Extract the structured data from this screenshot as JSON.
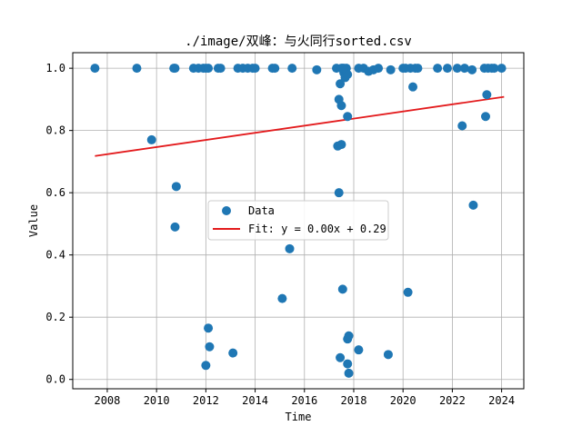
{
  "chart_data": {
    "type": "scatter",
    "title": "./image/双峰：与火同行sorted.csv",
    "xlabel": "Time",
    "ylabel": "Value",
    "xlim": [
      2006.6,
      2024.9
    ],
    "ylim": [
      -0.03,
      1.05
    ],
    "xticks": [
      2008,
      2010,
      2012,
      2014,
      2016,
      2018,
      2020,
      2022,
      2024
    ],
    "yticks": [
      0.0,
      0.2,
      0.4,
      0.6,
      0.8,
      1.0
    ],
    "xtick_labels": [
      "2008",
      "2010",
      "2012",
      "2014",
      "2016",
      "2018",
      "2020",
      "2022",
      "2024"
    ],
    "ytick_labels": [
      "0.0",
      "0.2",
      "0.4",
      "0.6",
      "0.8",
      "1.0"
    ],
    "grid": true,
    "legend_position": "center",
    "colors": {
      "points": "#1f77b4",
      "fit": "#e31a1c",
      "grid": "#b0b0b0"
    },
    "series": [
      {
        "name": "Data",
        "kind": "scatter",
        "points": [
          [
            2007.5,
            1.0
          ],
          [
            2009.2,
            1.0
          ],
          [
            2009.8,
            0.77
          ],
          [
            2010.7,
            1.0
          ],
          [
            2010.75,
            1.0
          ],
          [
            2010.8,
            0.62
          ],
          [
            2010.75,
            0.49
          ],
          [
            2011.5,
            1.0
          ],
          [
            2011.7,
            1.0
          ],
          [
            2011.9,
            1.0
          ],
          [
            2012.0,
            1.0
          ],
          [
            2012.1,
            1.0
          ],
          [
            2012.0,
            0.045
          ],
          [
            2012.1,
            0.165
          ],
          [
            2012.15,
            0.105
          ],
          [
            2012.5,
            1.0
          ],
          [
            2012.6,
            1.0
          ],
          [
            2013.1,
            0.085
          ],
          [
            2013.3,
            1.0
          ],
          [
            2013.5,
            1.0
          ],
          [
            2013.7,
            1.0
          ],
          [
            2013.9,
            1.0
          ],
          [
            2014.0,
            1.0
          ],
          [
            2014.7,
            1.0
          ],
          [
            2014.8,
            1.0
          ],
          [
            2015.1,
            0.26
          ],
          [
            2015.4,
            0.42
          ],
          [
            2015.5,
            1.0
          ],
          [
            2016.5,
            0.995
          ],
          [
            2017.3,
            1.0
          ],
          [
            2017.35,
            0.75
          ],
          [
            2017.4,
            0.6
          ],
          [
            2017.4,
            0.9
          ],
          [
            2017.45,
            0.95
          ],
          [
            2017.5,
            0.755
          ],
          [
            2017.5,
            0.88
          ],
          [
            2017.45,
            0.07
          ],
          [
            2017.55,
            0.29
          ],
          [
            2017.5,
            1.0
          ],
          [
            2017.6,
            0.985
          ],
          [
            2017.65,
            0.97
          ],
          [
            2017.7,
            1.0
          ],
          [
            2017.75,
            0.98
          ],
          [
            2017.75,
            0.845
          ],
          [
            2017.75,
            0.13
          ],
          [
            2017.8,
            0.14
          ],
          [
            2017.75,
            0.05
          ],
          [
            2017.8,
            0.02
          ],
          [
            2017.55,
            1.0
          ],
          [
            2017.6,
            1.0
          ],
          [
            2018.2,
            0.095
          ],
          [
            2018.2,
            1.0
          ],
          [
            2018.4,
            1.0
          ],
          [
            2018.6,
            0.99
          ],
          [
            2018.8,
            0.995
          ],
          [
            2019.0,
            1.0
          ],
          [
            2019.4,
            0.08
          ],
          [
            2019.5,
            0.995
          ],
          [
            2020.0,
            1.0
          ],
          [
            2020.1,
            1.0
          ],
          [
            2020.2,
            0.28
          ],
          [
            2020.3,
            1.0
          ],
          [
            2020.4,
            0.94
          ],
          [
            2020.5,
            1.0
          ],
          [
            2020.6,
            1.0
          ],
          [
            2021.4,
            1.0
          ],
          [
            2021.8,
            1.0
          ],
          [
            2022.2,
            1.0
          ],
          [
            2022.4,
            0.815
          ],
          [
            2022.5,
            1.0
          ],
          [
            2022.8,
            0.995
          ],
          [
            2022.85,
            0.56
          ],
          [
            2023.3,
            1.0
          ],
          [
            2023.35,
            0.845
          ],
          [
            2023.4,
            0.915
          ],
          [
            2023.45,
            1.0
          ],
          [
            2023.6,
            1.0
          ],
          [
            2023.7,
            1.0
          ],
          [
            2024.0,
            1.0
          ]
        ]
      },
      {
        "name": "Fit: y = 0.00x + 0.29",
        "kind": "line",
        "points": [
          [
            2007.5,
            0.718
          ],
          [
            2024.1,
            0.908
          ]
        ]
      }
    ]
  }
}
